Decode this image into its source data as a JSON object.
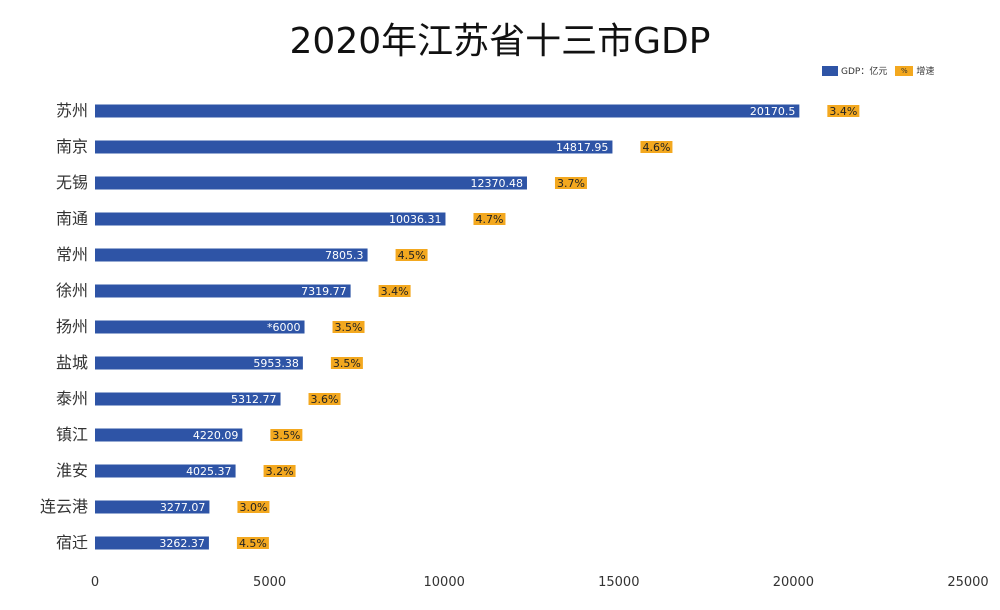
{
  "chart_data": {
    "type": "bar",
    "orientation": "horizontal",
    "title": "2020年江苏省十三市GDP",
    "legend": {
      "position": "top-right",
      "entries": [
        "GDP：亿元",
        "%",
        "增速"
      ]
    },
    "xlim": [
      0,
      25000
    ],
    "xticks": [
      "0",
      "5000",
      "10000",
      "15000",
      "20000",
      "25000"
    ],
    "categories": [
      "苏州",
      "南京",
      "无锡",
      "南通",
      "常州",
      "徐州",
      "扬州",
      "盐城",
      "泰州",
      "镇江",
      "淮安",
      "连云港",
      "宿迁"
    ],
    "series": [
      {
        "name": "GDP：亿元",
        "values": [
          20170.5,
          14817.95,
          12370.48,
          10036.31,
          7805.3,
          7319.77,
          6000,
          5953.38,
          5312.77,
          4220.09,
          4025.37,
          3277.07,
          3262.37
        ],
        "labels": [
          "20170.5",
          "14817.95",
          "12370.48",
          "10036.31",
          "7805.3",
          "7319.77",
          "*6000",
          "5953.38",
          "5312.77",
          "4220.09",
          "4025.37",
          "3277.07",
          "3262.37"
        ]
      },
      {
        "name": "增速",
        "labels": [
          "3.4%",
          "4.6%",
          "3.7%",
          "4.7%",
          "4.5%",
          "3.4%",
          "3.5%",
          "3.5%",
          "3.6%",
          "3.5%",
          "3.2%",
          "3.0%",
          "4.5%"
        ]
      }
    ],
    "colors": {
      "gdp": "#2e54a6",
      "growth": "#f3a81f"
    }
  }
}
